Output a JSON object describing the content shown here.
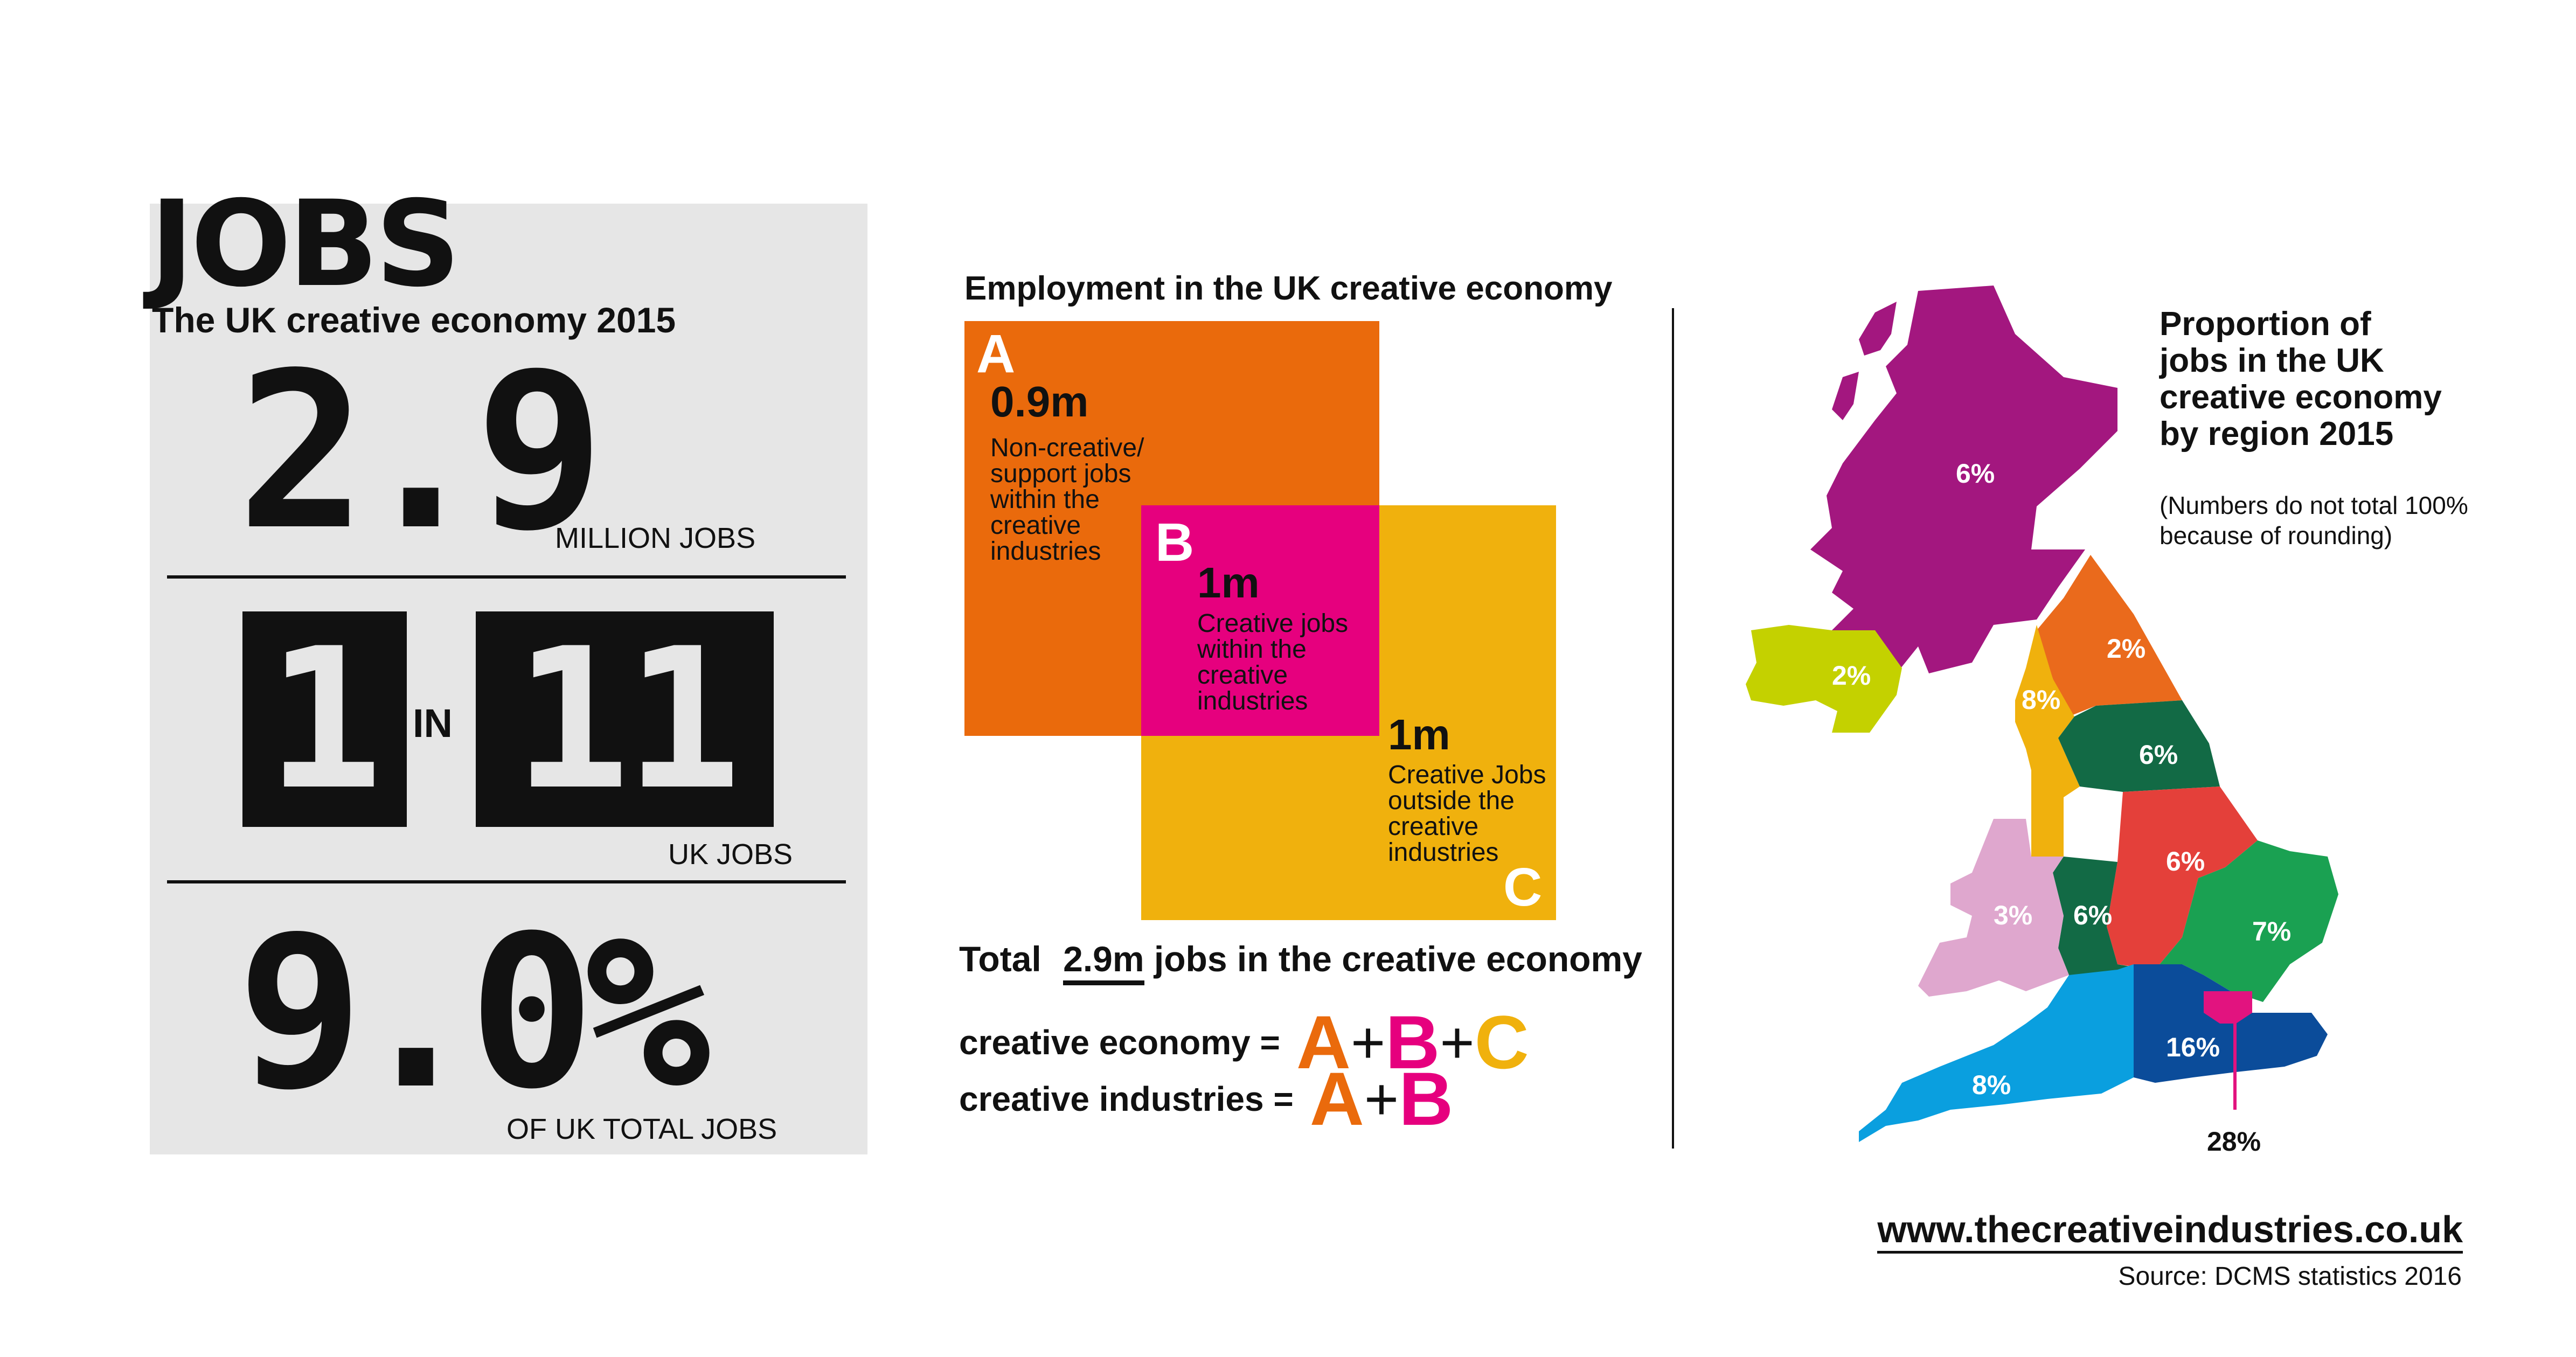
{
  "title": "JOBS",
  "subtitle": "The UK creative economy 2015",
  "stat1": {
    "value": "2.9",
    "unit": "MILLION JOBS"
  },
  "stat2": {
    "left": "1",
    "middle": "IN",
    "right": "11",
    "unit": "UK JOBS"
  },
  "stat3": {
    "value": "9.0",
    "symbol": "%",
    "unit": "OF UK TOTAL JOBS"
  },
  "employment": {
    "heading": "Employment in the UK creative economy",
    "box_a": {
      "letter": "A",
      "value": "0.9m",
      "desc": [
        "Non-creative/",
        "support jobs",
        "within the",
        "creative",
        "industries"
      ]
    },
    "box_b": {
      "letter": "B",
      "value": "1m",
      "desc": [
        "Creative jobs",
        "within the",
        "creative",
        "industries"
      ]
    },
    "box_c": {
      "letter": "C",
      "value": "1m",
      "desc": [
        "Creative Jobs",
        "outside the",
        "creative",
        "industries"
      ]
    },
    "total_prefix": "Total",
    "total_value": "2.9m",
    "total_suffix": "jobs in the creative economy",
    "formula1": {
      "label": "creative economy =",
      "a": "A",
      "plus1": "+",
      "b": "B",
      "plus2": "+",
      "c": "C"
    },
    "formula2": {
      "label": "creative industries =",
      "a": "A",
      "plus1": "+",
      "b": "B"
    }
  },
  "map": {
    "title": [
      "Proportion of",
      "jobs in the UK",
      "creative economy",
      "by region 2015"
    ],
    "note": [
      "(Numbers do not total 100%",
      "because of rounding)"
    ],
    "regions": {
      "scotland": "6%",
      "northern_ireland": "2%",
      "north_east": "2%",
      "cumbria": "8%",
      "yorkshire": "6%",
      "east_midlands": "6%",
      "wales": "3%",
      "west_midlands": "6%",
      "east": "7%",
      "south_west": "8%",
      "south_east": "16%",
      "london": "28%"
    },
    "colors": {
      "scotland": "#a3177f",
      "northern_ireland": "#c4d100",
      "north_east": "#ea6a1c",
      "cumbria": "#f0b10d",
      "yorkshire": "#126a45",
      "east_midlands": "#e4403a",
      "wales": "#dfa7ce",
      "west_midlands": "#126a45",
      "east": "#1aa152",
      "south_west": "#0a9fdf",
      "south_east": "#0b4c9a",
      "london": "#e2137f"
    }
  },
  "colors": {
    "orange": "#ea6a0c",
    "magenta": "#e6007e",
    "yellow": "#f0b10d",
    "panel": "#e6e6e6"
  },
  "footer": {
    "url": "www.thecreativeindustries.co.uk",
    "source": "Source: DCMS statistics 2016"
  }
}
